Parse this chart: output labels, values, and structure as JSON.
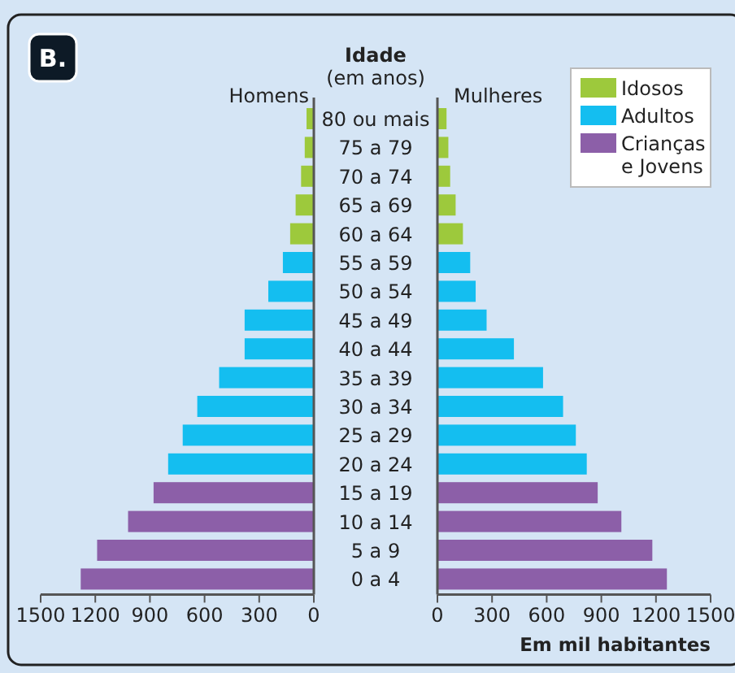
{
  "chart_data": [
    {
      "type": "bar",
      "orientation": "horizontal",
      "title": "Homens",
      "ylabel": "Idade (em anos)",
      "annotations": [
        "B."
      ],
      "categories": [
        "80 ou mais",
        "75 a 79",
        "70 a 74",
        "65 a 69",
        "60 a 64",
        "55 a 59",
        "50 a 54",
        "45 a 49",
        "40 a 44",
        "35 a 39",
        "30 a 34",
        "25 a 29",
        "20 a 24",
        "15 a 19",
        "10 a 14",
        "5 a 9",
        "0 a 4"
      ],
      "series": [
        {
          "color": "#9dc93c",
          "values": [
            40,
            50,
            70,
            100,
            130,
            null,
            null,
            null,
            null,
            null,
            null,
            null,
            null,
            null,
            null,
            null,
            null
          ]
        },
        {
          "color": "#14bef0",
          "values": [
            null,
            null,
            null,
            null,
            null,
            170,
            250,
            380,
            380,
            520,
            640,
            720,
            800,
            null,
            null,
            null,
            null
          ]
        },
        {
          "color": "#8c5fa8",
          "values": [
            null,
            null,
            null,
            null,
            null,
            null,
            null,
            null,
            null,
            null,
            null,
            null,
            null,
            880,
            1020,
            1190,
            1280
          ]
        }
      ],
      "xlim": [
        1500,
        0
      ],
      "xticks": [
        1500,
        1200,
        900,
        600,
        300,
        0
      ],
      "legend": false
    },
    {
      "type": "bar",
      "orientation": "horizontal",
      "title": "Mulheres",
      "xlabel": "Em mil habitantes",
      "series": [
        {
          "name": "Idosos",
          "color": "#9dc93c",
          "values": [
            50,
            60,
            70,
            100,
            140,
            null,
            null,
            null,
            null,
            null,
            null,
            null,
            null,
            null,
            null,
            null,
            null
          ]
        },
        {
          "name": "Adultos",
          "color": "#14bef0",
          "values": [
            null,
            null,
            null,
            null,
            null,
            180,
            210,
            270,
            420,
            580,
            690,
            760,
            820,
            null,
            null,
            null,
            null
          ]
        },
        {
          "name": "Crianças e Jovens",
          "color": "#8c5fa8",
          "values": [
            null,
            null,
            null,
            null,
            null,
            null,
            null,
            null,
            null,
            null,
            null,
            null,
            null,
            880,
            1010,
            1180,
            1260
          ]
        }
      ],
      "xlim": [
        0,
        1500
      ],
      "xticks": [
        0,
        300,
        600,
        900,
        1200,
        1500
      ],
      "tick_labels": "x",
      "legend": "top right"
    }
  ]
}
